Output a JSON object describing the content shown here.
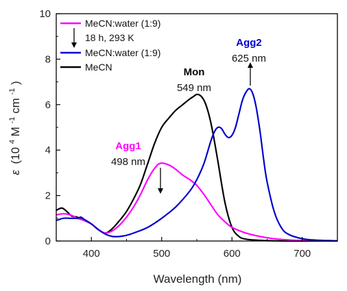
{
  "chart_data": {
    "type": "line",
    "xlabel": "Wavelength (nm)",
    "ylabel_symbol": "ε",
    "ylabel_units": "(10",
    "ylabel_exp1": "4",
    "ylabel_mid": " M",
    "ylabel_exp2": "-1",
    "ylabel_mid2": " cm",
    "ylabel_exp3": "-1",
    "ylabel_end": ")",
    "xlim": [
      350,
      750
    ],
    "ylim": [
      0,
      10
    ],
    "xticks": [
      400,
      500,
      600,
      700
    ],
    "yticks": [
      0,
      2,
      4,
      6,
      8,
      10
    ],
    "grid": false,
    "legend_position": "top-left",
    "legend": [
      {
        "label": "MeCN:water (1:9)",
        "color": "#ff00ff"
      },
      {
        "label": "18 h, 293 K",
        "color": "#000000"
      },
      {
        "label": "MeCN:water (1:9)",
        "color": "#0000cc"
      },
      {
        "label": "MeCN",
        "color": "#000000"
      }
    ],
    "annotations": [
      {
        "title": "Agg1",
        "value": "498 nm",
        "color": "#ff00ff",
        "x": 498
      },
      {
        "title": "Mon",
        "value": "549 nm",
        "color": "#000000",
        "x": 549
      },
      {
        "title": "Agg2",
        "value": "625 nm",
        "color": "#0000cc",
        "x": 625
      }
    ],
    "series": [
      {
        "color": "#000000",
        "x": [
          350,
          358,
          365,
          372,
          380,
          390,
          400,
          410,
          420,
          430,
          440,
          450,
          460,
          470,
          480,
          490,
          500,
          510,
          520,
          530,
          540,
          545,
          550,
          555,
          560,
          565,
          570,
          575,
          580,
          590,
          600,
          610,
          620,
          640,
          660,
          680,
          700,
          750
        ],
        "y": [
          1.35,
          1.45,
          1.3,
          1.1,
          1.05,
          0.9,
          0.75,
          0.5,
          0.35,
          0.55,
          0.9,
          1.3,
          1.85,
          2.5,
          3.4,
          4.3,
          5.0,
          5.4,
          5.75,
          6.0,
          6.25,
          6.35,
          6.45,
          6.4,
          6.2,
          5.8,
          5.2,
          4.4,
          3.5,
          1.7,
          0.6,
          0.2,
          0.08,
          0.03,
          0.01,
          0.0,
          0.0,
          0.0
        ]
      },
      {
        "color": "#ff00ff",
        "x": [
          350,
          360,
          370,
          380,
          390,
          400,
          410,
          420,
          430,
          440,
          450,
          460,
          470,
          480,
          490,
          498,
          510,
          520,
          530,
          540,
          550,
          560,
          570,
          580,
          590,
          600,
          620,
          640,
          660,
          680,
          700,
          720,
          750
        ],
        "y": [
          1.15,
          1.2,
          1.15,
          1.0,
          0.9,
          0.75,
          0.5,
          0.35,
          0.45,
          0.7,
          1.05,
          1.5,
          2.05,
          2.7,
          3.2,
          3.42,
          3.35,
          3.15,
          2.9,
          2.7,
          2.45,
          2.05,
          1.6,
          1.15,
          0.85,
          0.6,
          0.35,
          0.2,
          0.1,
          0.05,
          0.02,
          0.01,
          0.0
        ]
      },
      {
        "color": "#0000cc",
        "x": [
          350,
          360,
          370,
          380,
          385,
          390,
          400,
          410,
          420,
          430,
          440,
          450,
          460,
          480,
          500,
          520,
          540,
          550,
          560,
          570,
          575,
          580,
          585,
          590,
          595,
          600,
          605,
          610,
          615,
          620,
          625,
          630,
          635,
          640,
          645,
          650,
          660,
          670,
          680,
          700,
          720,
          750
        ],
        "y": [
          0.9,
          1.0,
          1.0,
          1.0,
          1.05,
          0.95,
          0.75,
          0.5,
          0.3,
          0.2,
          0.2,
          0.25,
          0.35,
          0.6,
          1.0,
          1.5,
          2.2,
          2.7,
          3.4,
          4.4,
          4.8,
          5.0,
          4.95,
          4.7,
          4.55,
          4.65,
          5.0,
          5.6,
          6.2,
          6.55,
          6.7,
          6.45,
          5.8,
          4.8,
          3.6,
          2.6,
          1.3,
          0.6,
          0.3,
          0.1,
          0.04,
          0.01
        ]
      }
    ]
  }
}
